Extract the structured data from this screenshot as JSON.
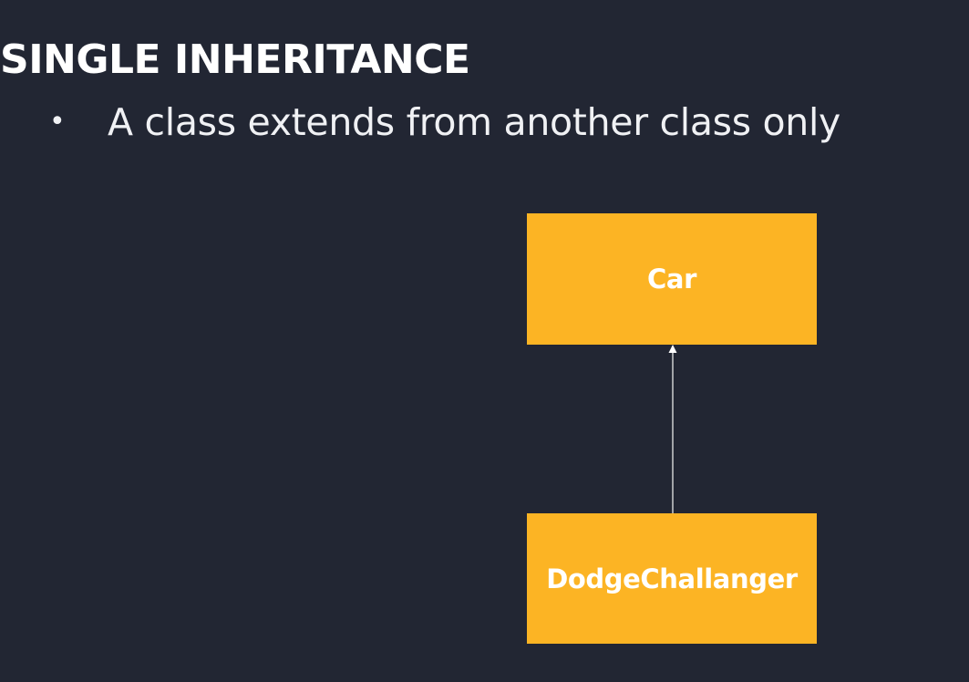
{
  "slide": {
    "title": "SINGLE INHERITANCE",
    "bullets": [
      {
        "marker": "•",
        "text": "A class extends from another class only"
      }
    ]
  },
  "diagram": {
    "parent_class": {
      "label": "Car"
    },
    "child_class": {
      "label": "DodgeChallanger"
    },
    "relation": "inheritance-arrow",
    "colors": {
      "background": "#222633",
      "box_fill": "#fcb424",
      "box_text": "#ffffff",
      "connector": "#e8e8e8"
    }
  }
}
